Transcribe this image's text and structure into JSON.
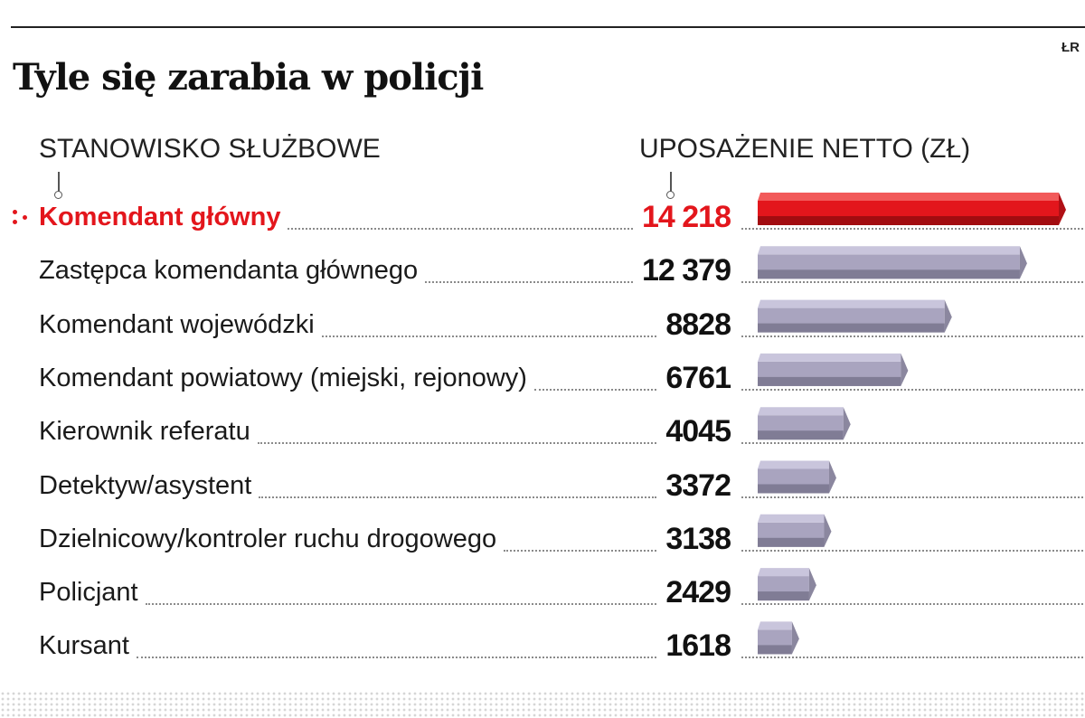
{
  "credit": "ŁR",
  "title": "Tyle się zarabia w policji",
  "columns": {
    "left": "STANOWISKO SŁUŻBOWE",
    "right": "UPOSAŻENIE NETTO (ZŁ)"
  },
  "colors": {
    "highlight": "#e3161c",
    "bar": "#a9a4bf"
  },
  "chart_data": {
    "type": "bar",
    "orientation": "horizontal",
    "title": "Tyle się zarabia w policji",
    "xlabel": "UPOSAŻENIE NETTO (ZŁ)",
    "ylabel": "STANOWISKO SŁUŻBOWE",
    "categories": [
      "Komendant główny",
      "Zastępca komendanta głównego",
      "Komendant wojewódzki",
      "Komendant powiatowy (miejski, rejonowy)",
      "Kierownik referatu",
      "Detektyw/asystent",
      "Dzielnicowy/kontroler ruchu drogowego",
      "Policjant",
      "Kursant"
    ],
    "values": [
      14218,
      12379,
      8828,
      6761,
      4045,
      3372,
      3138,
      2429,
      1618
    ],
    "value_labels": [
      "14 218",
      "12 379",
      "8828",
      "6761",
      "4045",
      "3372",
      "3138",
      "2429",
      "1618"
    ],
    "highlighted_index": 0,
    "xlim": [
      0,
      14218
    ],
    "grid": false,
    "legend": "none"
  }
}
